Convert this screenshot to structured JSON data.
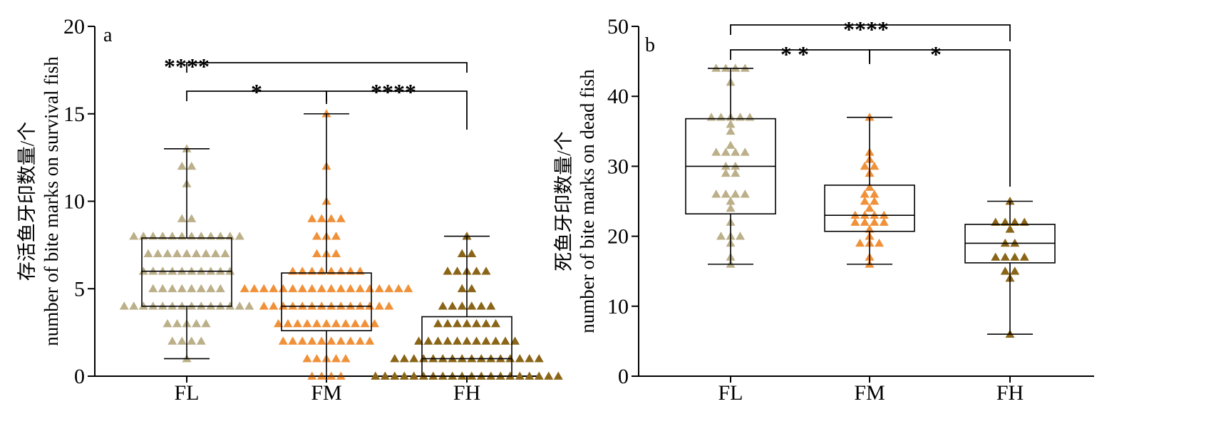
{
  "chart_data": [
    {
      "type": "box",
      "panel_label": "a",
      "ylabel_line1": "存活鱼牙印数量/个",
      "ylabel_line2": "number of bite marks on survival fish",
      "ylim": [
        0,
        20
      ],
      "yticks": [
        "0",
        "5",
        "10",
        "15",
        "20"
      ],
      "categories": [
        "FL",
        "FM",
        "FH"
      ],
      "colors": [
        "#bcb08a",
        "#f0913a",
        "#8a6518"
      ],
      "boxes": [
        {
          "min": 1,
          "q1": 4,
          "median": 6,
          "q3": 7.9,
          "max": 13
        },
        {
          "min": 0,
          "q1": 2.6,
          "median": 4,
          "q3": 5.9,
          "max": 15
        },
        {
          "min": 0,
          "q1": 0,
          "median": 1,
          "q3": 3.4,
          "max": 8
        }
      ],
      "points": [
        [
          [
            13,
            1
          ],
          [
            12,
            2
          ],
          [
            11,
            1
          ],
          [
            9,
            2
          ],
          [
            8,
            12
          ],
          [
            7,
            9
          ],
          [
            6,
            10
          ],
          [
            5,
            8
          ],
          [
            4,
            14
          ],
          [
            3,
            5
          ],
          [
            2,
            4
          ],
          [
            1,
            1
          ]
        ],
        [
          [
            15,
            1
          ],
          [
            12,
            1
          ],
          [
            10,
            1
          ],
          [
            9,
            4
          ],
          [
            8,
            3
          ],
          [
            7,
            3
          ],
          [
            6,
            8
          ],
          [
            5,
            18
          ],
          [
            4,
            14
          ],
          [
            3,
            11
          ],
          [
            2,
            10
          ],
          [
            1,
            5
          ],
          [
            0,
            4
          ]
        ],
        [
          [
            8,
            1
          ],
          [
            7,
            2
          ],
          [
            6,
            5
          ],
          [
            5,
            2
          ],
          [
            4,
            6
          ],
          [
            3,
            7
          ],
          [
            2,
            11
          ],
          [
            1,
            16
          ],
          [
            0,
            20
          ]
        ]
      ],
      "significance": [
        {
          "from": 0,
          "to": 2,
          "label": "****"
        },
        {
          "from": 0,
          "to": 1,
          "label": "*"
        },
        {
          "from": 1,
          "to": 2,
          "label": "****"
        }
      ]
    },
    {
      "type": "box",
      "panel_label": "b",
      "ylabel_line1": "死鱼牙印数量/个",
      "ylabel_line2": "number of bite marks on dead fish",
      "ylim": [
        0,
        50
      ],
      "yticks": [
        "0",
        "10",
        "20",
        "30",
        "40",
        "50"
      ],
      "categories": [
        "FL",
        "FM",
        "FH"
      ],
      "colors": [
        "#bcb08a",
        "#f0913a",
        "#8a6518"
      ],
      "boxes": [
        {
          "min": 16,
          "q1": 23.2,
          "median": 30,
          "q3": 36.8,
          "max": 44
        },
        {
          "min": 16,
          "q1": 20.7,
          "median": 23,
          "q3": 27.3,
          "max": 37
        },
        {
          "min": 6,
          "q1": 16.2,
          "median": 19,
          "q3": 21.7,
          "max": 25
        }
      ],
      "points": [
        [
          [
            44,
            4
          ],
          [
            42,
            1
          ],
          [
            37,
            5
          ],
          [
            36,
            1
          ],
          [
            35,
            1
          ],
          [
            33,
            1
          ],
          [
            32,
            4
          ],
          [
            30,
            2
          ],
          [
            29,
            2
          ],
          [
            26,
            4
          ],
          [
            25,
            1
          ],
          [
            24,
            1
          ],
          [
            22,
            1
          ],
          [
            20,
            3
          ],
          [
            19,
            1
          ],
          [
            17,
            1
          ],
          [
            16,
            1
          ]
        ],
        [
          [
            37,
            1
          ],
          [
            32,
            1
          ],
          [
            31,
            1
          ],
          [
            30,
            2
          ],
          [
            29,
            1
          ],
          [
            27,
            1
          ],
          [
            26,
            2
          ],
          [
            25,
            2
          ],
          [
            24,
            1
          ],
          [
            23,
            4
          ],
          [
            22,
            4
          ],
          [
            21,
            1
          ],
          [
            20,
            1
          ],
          [
            19,
            3
          ],
          [
            17,
            1
          ],
          [
            16,
            1
          ]
        ],
        [
          [
            25,
            1
          ],
          [
            22,
            4
          ],
          [
            21,
            1
          ],
          [
            19,
            2
          ],
          [
            17,
            4
          ],
          [
            15,
            2
          ],
          [
            14,
            1
          ],
          [
            6,
            1
          ]
        ]
      ],
      "significance": [
        {
          "from": 0,
          "to": 2,
          "label": "****"
        },
        {
          "from": 0,
          "to": 1,
          "label": "* *"
        },
        {
          "from": 1,
          "to": 2,
          "label": "*"
        }
      ]
    }
  ]
}
